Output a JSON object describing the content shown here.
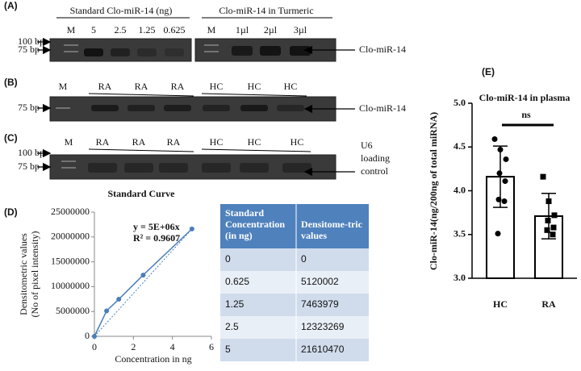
{
  "panels": {
    "A": {
      "label": "(A)",
      "gel1_title": "Standard Clo-miR-14 (ng)",
      "gel1_lanes": [
        "M",
        "5",
        "2.5",
        "1.25",
        "0.625"
      ],
      "gel2_title": "Clo-miR-14 in Turmeric",
      "gel2_lanes": [
        "M",
        "1µl",
        "2µl",
        "3µl"
      ],
      "markers": [
        "100 bp",
        "75 bp"
      ],
      "target": "Clo-miR-14"
    },
    "B": {
      "label": "(B)",
      "lanes": [
        "M",
        "RA",
        "RA",
        "RA",
        "HC",
        "HC",
        "HC"
      ],
      "markers": [
        "75 bp"
      ],
      "target": "Clo-miR-14"
    },
    "C": {
      "label": "(C)",
      "lanes": [
        "M",
        "RA",
        "RA",
        "RA",
        "HC",
        "HC",
        "HC"
      ],
      "markers": [
        "100 bp",
        "75 bp"
      ],
      "target": [
        "U6",
        "loading",
        "control"
      ]
    },
    "D": {
      "label": "(D)"
    },
    "E": {
      "label": "(E)"
    }
  },
  "chart_data": [
    {
      "type": "line",
      "title": "Standard Curve",
      "xlabel": "Concentration in ng",
      "ylabel": [
        "Densitometric values",
        "(No of pixel intensity)"
      ],
      "x": [
        0,
        0.625,
        1.25,
        2.5,
        5
      ],
      "values": [
        0,
        5120002,
        7463979,
        12323269,
        21610470
      ],
      "color": "#4a7ebb",
      "xlim": [
        0,
        6
      ],
      "xticks": [
        0,
        2,
        4,
        6
      ],
      "ylim": [
        0,
        25000000
      ],
      "yticks": [
        0,
        5000000,
        10000000,
        15000000,
        20000000,
        25000000
      ],
      "annotations": [
        "y = 5E+06x",
        "R² = 0.9607"
      ]
    },
    {
      "type": "bar",
      "title": "Clo-miR-14 in plasma",
      "ylabel": "Clo-miR-14(ng/200ng of total miRNA)",
      "categories": [
        "HC",
        "RA"
      ],
      "values": [
        4.16,
        3.71
      ],
      "errors": [
        0.35,
        0.26
      ],
      "points": [
        [
          4.59,
          4.47,
          4.36,
          4.2,
          4.11,
          3.9,
          3.88,
          3.51
        ],
        [
          4.16,
          3.88,
          3.72,
          3.66,
          3.58,
          3.55,
          3.5
        ]
      ],
      "ylim": [
        3,
        5
      ],
      "yticks": [
        {
          "value": 3,
          "label": "3.0"
        },
        {
          "value": 3.5,
          "label": "3.5"
        },
        {
          "value": 4,
          "label": "4.0"
        },
        {
          "value": 4.5,
          "label": "4.5"
        },
        {
          "value": 5,
          "label": "5.0"
        }
      ],
      "annotations": [
        "ns"
      ]
    }
  ],
  "table": {
    "header": [
      "Standard Concentration (in ng)",
      "Densitome-tric values"
    ],
    "rows": [
      [
        "0",
        "0"
      ],
      [
        "0.625",
        "5120002"
      ],
      [
        "1.25",
        "7463979"
      ],
      [
        "2.5",
        "12323269"
      ],
      [
        "5",
        "21610470"
      ]
    ]
  }
}
